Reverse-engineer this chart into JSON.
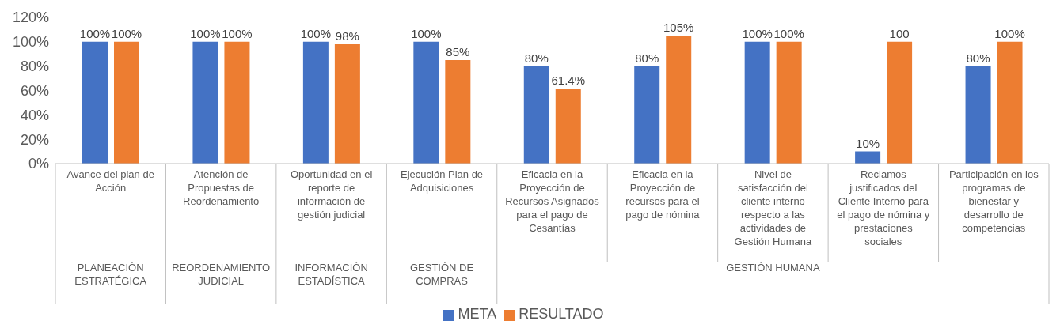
{
  "chart_data": {
    "type": "bar",
    "categories": [
      "Avance del plan de Acción",
      "Atención de Propuestas de Reordenamiento",
      "Oportunidad en el reporte de información de gestión judicial",
      "Ejecución Plan de Adquisiciones",
      "Eficacia en la Proyección de Recursos Asignados para el pago de Cesantías",
      "Eficacia en la Proyección de recursos para el pago de nómina",
      "Nivel de satisfacción del cliente interno respecto a las actividades de Gestión Humana",
      "Reclamos justificados del Cliente Interno para el pago de nómina y prestaciones sociales",
      "Participación en los programas de bienestar y desarrollo de competencias"
    ],
    "series": [
      {
        "name": "META",
        "color": "#4472c4",
        "values": [
          100,
          100,
          100,
          100,
          80,
          80,
          100,
          10,
          80
        ],
        "value_labels": [
          "100%",
          "100%",
          "100%",
          "100%",
          "80%",
          "80%",
          "100%",
          "10%",
          "80%"
        ]
      },
      {
        "name": "RESULTADO",
        "color": "#ed7d31",
        "values": [
          100,
          100,
          98,
          85,
          61.4,
          105,
          100,
          100,
          100
        ],
        "value_labels": [
          "100%",
          "100%",
          "98%",
          "85%",
          "61.4%",
          "105%",
          "100%",
          "100",
          "100%"
        ]
      }
    ],
    "annotations": [
      "PLANEACIÓN ESTRATÉGICA",
      "REORDENAMIENTO JUDICIAL",
      "INFORMACIÓN ESTADÍSTICA",
      "GESTIÓN DE COMPRAS",
      "GESTIÓN HUMANA"
    ],
    "ylim": [
      0,
      120
    ],
    "yticks": [
      {
        "value": 0,
        "label": "0%"
      },
      {
        "value": 20,
        "label": "20%"
      },
      {
        "value": 40,
        "label": "40%"
      },
      {
        "value": 60,
        "label": "60%"
      },
      {
        "value": 80,
        "label": "80%"
      },
      {
        "value": 100,
        "label": "100%"
      },
      {
        "value": 120,
        "label": "120%"
      }
    ],
    "grid": false,
    "legend": "bottom"
  }
}
